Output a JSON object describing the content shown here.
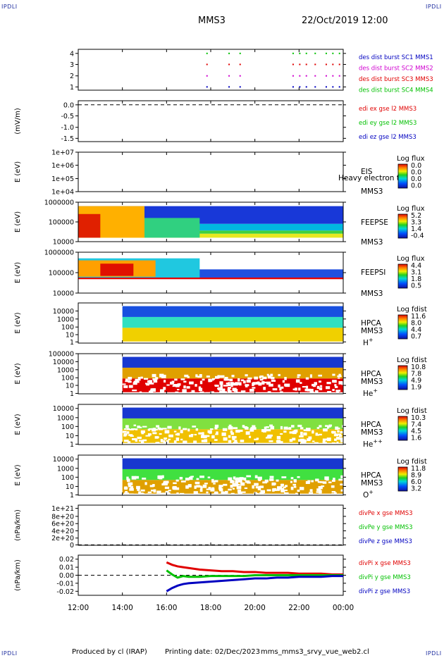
{
  "header": {
    "mission": "MMS3",
    "datetime": "22/Oct/2019 12:00",
    "corner_label": "IPDLI"
  },
  "footer": {
    "produced_by": "Produced by cl (IRAP)",
    "printing_date": "Printing date: 02/Dec/2023",
    "script_name": "mms_mms3_srvy_vue_web2.cl"
  },
  "colors": {
    "red": "#e00000",
    "green": "#00c000",
    "blue": "#0000c0",
    "magenta": "#d000d0"
  },
  "chart_data": {
    "type": "multi-panel time series",
    "x_ticks": [
      "12:00",
      "14:00",
      "16:00",
      "18:00",
      "20:00",
      "22:00",
      "00:00"
    ],
    "panels": [
      {
        "id": "burst",
        "type": "scatter",
        "ylabel": "",
        "ticks": [
          "4",
          "3",
          "2",
          "1"
        ],
        "legend": [
          {
            "text": "des dist burst SC1 MMS1",
            "color": "#0000c0"
          },
          {
            "text": "des dist burst SC2 MMS2",
            "color": "#d000d0"
          },
          {
            "text": "des dist burst SC3 MMS3",
            "color": "#e00000"
          },
          {
            "text": "des dist burst SC4 MMS4",
            "color": "#00c000"
          }
        ]
      },
      {
        "id": "edi",
        "type": "line",
        "ylabel": "(mV/m)",
        "ticks": [
          "0.0",
          "-0.5",
          "-1.0",
          "-1.5"
        ],
        "legend": [
          {
            "text": "edi ex gse l2 MMS3",
            "color": "#e00000"
          },
          {
            "text": "edi ey gse l2 MMS3",
            "color": "#00c000"
          },
          {
            "text": "edi ez gse l2 MMS3",
            "color": "#0000c0"
          }
        ]
      },
      {
        "id": "eis",
        "type": "heatmap",
        "ylabel": "E (eV)",
        "ticks": [
          "1e+07",
          "1e+06",
          "1e+05",
          "1e+04"
        ],
        "labels": [
          "EIS",
          "Heavy electron to",
          "MMS3"
        ],
        "cbar_title": "Log flux",
        "cbar_ticks": [
          "0.0",
          "0.0",
          "0.0",
          "0.0"
        ]
      },
      {
        "id": "feepse",
        "type": "heatmap",
        "ylabel": "E (eV)",
        "ticks": [
          "1000000",
          "100000",
          "10000"
        ],
        "labels": [
          "FEEPSE",
          "MMS3"
        ],
        "cbar_title": "Log flux",
        "cbar_ticks": [
          "5.2",
          "3.3",
          "1.4",
          "-0.4"
        ]
      },
      {
        "id": "feepsi",
        "type": "heatmap",
        "ylabel": "E (eV)",
        "ticks": [
          "1000000",
          "100000",
          "10000"
        ],
        "labels": [
          "FEEPSI",
          "MMS3"
        ],
        "cbar_title": "Log flux",
        "cbar_ticks": [
          "4.4",
          "3.1",
          "1.8",
          "0.5"
        ]
      },
      {
        "id": "hpca_h",
        "type": "heatmap",
        "ylabel": "E (eV)",
        "ticks": [
          "10000",
          "1000",
          "100",
          "10",
          "1"
        ],
        "labels": [
          "HPCA",
          "MMS3"
        ],
        "species": "H",
        "species_sup": "+",
        "cbar_title": "Log fdist",
        "cbar_ticks": [
          "11.6",
          "8.0",
          "4.4",
          "0.7"
        ]
      },
      {
        "id": "hpca_he",
        "type": "heatmap",
        "ylabel": "E (eV)",
        "ticks": [
          "100000",
          "10000",
          "1000",
          "100",
          "10",
          "1"
        ],
        "labels": [
          "HPCA",
          "MMS3"
        ],
        "species": "He",
        "species_sup": "+",
        "cbar_title": "Log fdist",
        "cbar_ticks": [
          "10.8",
          "7.8",
          "4.9",
          "1.9"
        ]
      },
      {
        "id": "hpca_he2",
        "type": "heatmap",
        "ylabel": "E (eV)",
        "ticks": [
          "10000",
          "1000",
          "100",
          "10",
          "1"
        ],
        "labels": [
          "HPCA",
          "MMS3"
        ],
        "species": "He",
        "species_sup": "++",
        "cbar_title": "Log fdist",
        "cbar_ticks": [
          "10.3",
          "7.4",
          "4.5",
          "1.6"
        ]
      },
      {
        "id": "hpca_o",
        "type": "heatmap",
        "ylabel": "E (eV)",
        "ticks": [
          "10000",
          "1000",
          "100",
          "10",
          "1"
        ],
        "labels": [
          "HPCA",
          "MMS3"
        ],
        "species": "O",
        "species_sup": "+",
        "cbar_title": "Log fdist",
        "cbar_ticks": [
          "11.8",
          "8.9",
          "6.0",
          "3.2"
        ]
      },
      {
        "id": "divpe",
        "type": "line",
        "ylabel": "(nPa/km)",
        "ticks": [
          "1e+21",
          "8e+20",
          "6e+20",
          "4e+20",
          "2e+20",
          "0"
        ],
        "legend": [
          {
            "text": "divPe x gse MMS3",
            "color": "#e00000"
          },
          {
            "text": "divPe y gse MMS3",
            "color": "#00c000"
          },
          {
            "text": "divPe z gse MMS3",
            "color": "#0000c0"
          }
        ]
      },
      {
        "id": "divpi",
        "type": "line",
        "ylabel": "(nPa/km)",
        "ticks": [
          "0.02",
          "0.01",
          "0.00",
          "-0.01",
          "-0.02"
        ],
        "ylim": [
          -0.025,
          0.025
        ],
        "legend": [
          {
            "text": "divPi x gse MMS3",
            "color": "#e00000"
          },
          {
            "text": "divPi y gse MMS3",
            "color": "#00c000"
          },
          {
            "text": "divPi z gse MMS3",
            "color": "#0000c0"
          }
        ],
        "series": [
          {
            "name": "divPi x gse MMS3",
            "color": "#e00000",
            "t": [
              16.0,
              16.25,
              16.5,
              16.75,
              17.0,
              17.5,
              18.0,
              18.5,
              19.0,
              19.5,
              20.0,
              20.5,
              21.0,
              21.5,
              22.0,
              22.5,
              23.0,
              23.5,
              24.0
            ],
            "v": [
              0.016,
              0.013,
              0.011,
              0.01,
              0.009,
              0.007,
              0.006,
              0.005,
              0.005,
              0.004,
              0.004,
              0.003,
              0.003,
              0.003,
              0.002,
              0.002,
              0.002,
              0.001,
              0.001
            ]
          },
          {
            "name": "divPi y gse MMS3",
            "color": "#00c000",
            "t": [
              16.0,
              16.25,
              16.5,
              16.75,
              17.0,
              17.5,
              18.0,
              18.5,
              19.0,
              19.5,
              20.0,
              20.5,
              21.0,
              21.5,
              22.0,
              22.5,
              23.0,
              23.5,
              24.0
            ],
            "v": [
              0.006,
              0.001,
              -0.003,
              -0.001,
              -0.002,
              -0.002,
              -0.001,
              -0.001,
              -0.001,
              -0.001,
              0.0,
              0.0,
              0.0,
              0.0,
              0.0,
              0.0,
              0.0,
              0.0,
              0.0
            ]
          },
          {
            "name": "divPi z gse MMS3",
            "color": "#0000c0",
            "t": [
              16.0,
              16.25,
              16.5,
              16.75,
              17.0,
              17.5,
              18.0,
              18.5,
              19.0,
              19.5,
              20.0,
              20.5,
              21.0,
              21.5,
              22.0,
              22.5,
              23.0,
              23.5,
              24.0
            ],
            "v": [
              -0.02,
              -0.016,
              -0.013,
              -0.011,
              -0.01,
              -0.009,
              -0.008,
              -0.007,
              -0.006,
              -0.005,
              -0.004,
              -0.004,
              -0.003,
              -0.003,
              -0.002,
              -0.002,
              -0.002,
              -0.001,
              -0.001
            ]
          }
        ]
      }
    ]
  }
}
